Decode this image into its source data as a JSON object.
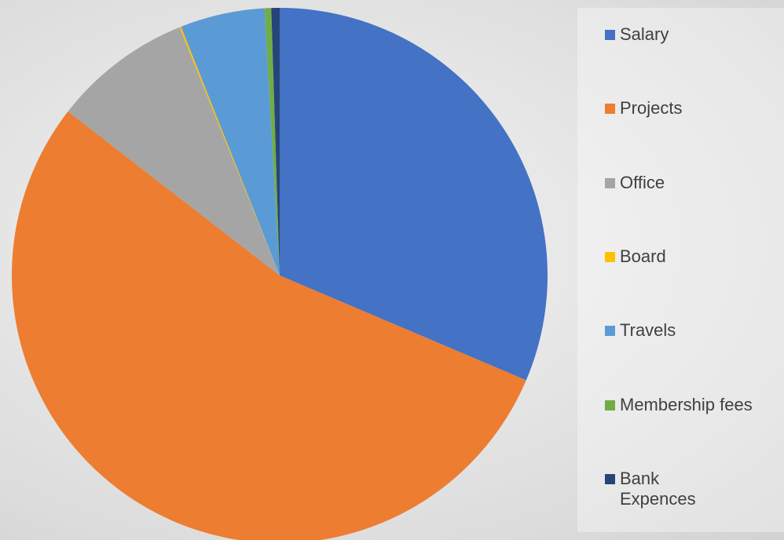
{
  "chart_data": {
    "type": "pie",
    "categories": [
      "Salary",
      "Projects",
      "Office",
      "Board",
      "Travels",
      "Membership fees",
      "Bank Expences"
    ],
    "values": [
      31.4,
      54.1,
      8.4,
      0.1,
      5.1,
      0.4,
      0.5
    ],
    "colors": [
      "#4472c4",
      "#ed7d31",
      "#a5a5a5",
      "#ffc000",
      "#5b9bd5",
      "#70ad47",
      "#264478"
    ],
    "legend": "right"
  }
}
